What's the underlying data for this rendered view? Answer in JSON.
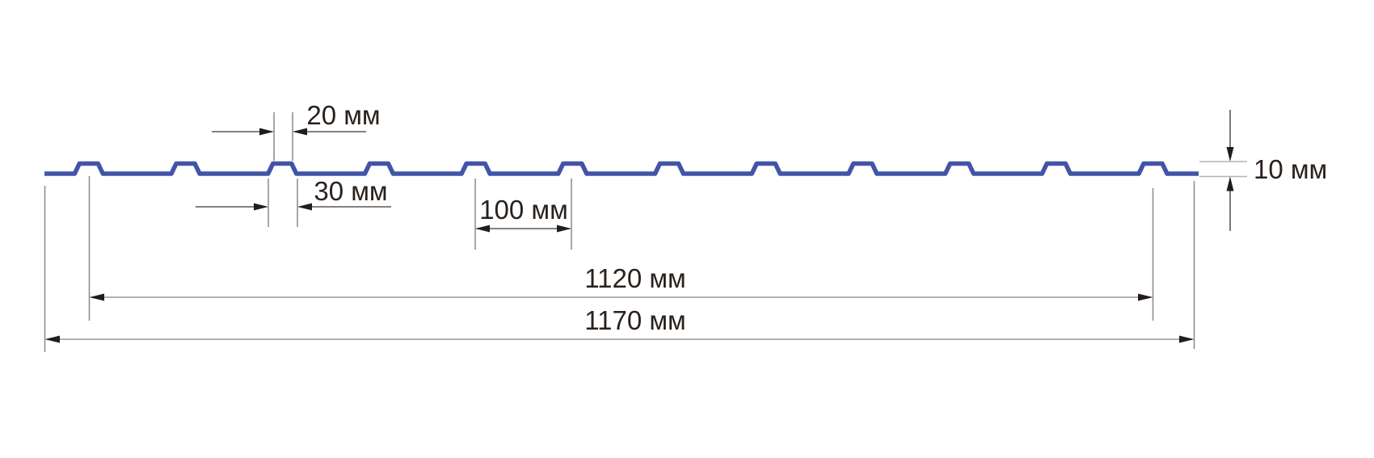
{
  "drawing": {
    "type": "profiled-sheet-cross-section",
    "profile": {
      "rib_count": 12,
      "shape": "trapezoidal-ribs-on-flat-sheet"
    },
    "dimensions": {
      "rib_top_width": {
        "label": "20 мм",
        "value_mm": 20
      },
      "rib_base_width": {
        "label": "30 мм",
        "value_mm": 30
      },
      "rib_pitch": {
        "label": "100 мм",
        "value_mm": 100
      },
      "cover_width": {
        "label": "1120 мм",
        "value_mm": 1120
      },
      "overall_width": {
        "label": "1170 мм",
        "value_mm": 1170
      },
      "profile_height": {
        "label": "10 мм",
        "value_mm": 10
      }
    },
    "colors": {
      "profile_blue": "#4254a8",
      "annotation_text": "#2a211c",
      "dimension_line_dark": "#585858",
      "dimension_line_light": "#979797",
      "extension_line": "#8f8f8f",
      "arrowhead": "#241c19",
      "background": "#ffffff"
    }
  }
}
